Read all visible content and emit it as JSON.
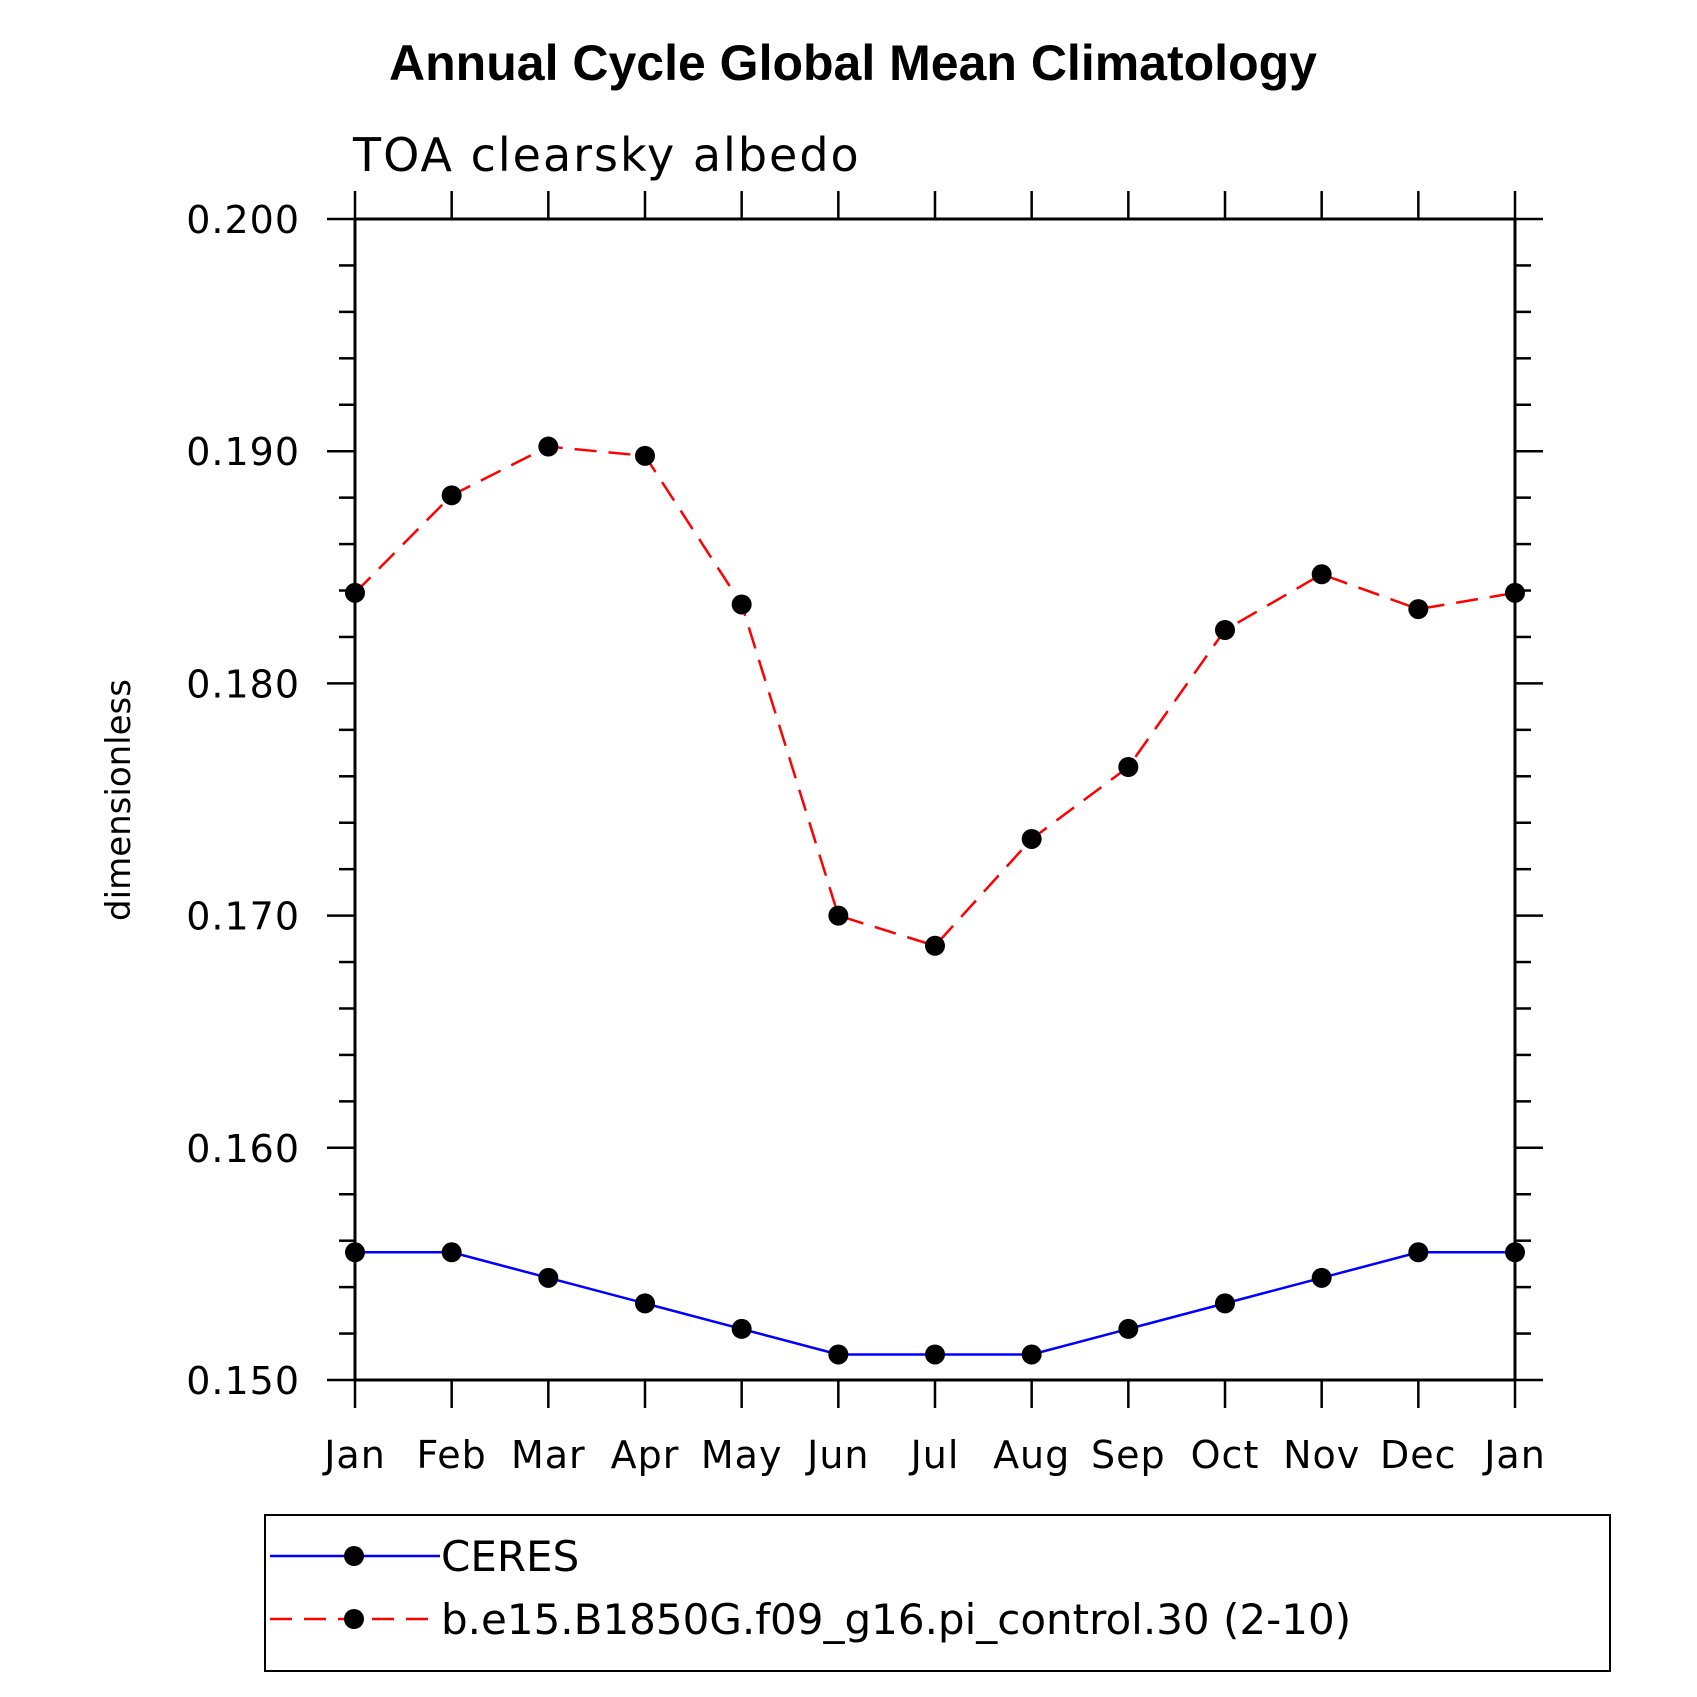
{
  "chart_data": {
    "type": "line",
    "title": "Annual Cycle Global Mean Climatology",
    "subtitle": "TOA clearsky albedo",
    "xlabel": "",
    "ylabel": "dimensionless",
    "categories": [
      "Jan",
      "Feb",
      "Mar",
      "Apr",
      "May",
      "Jun",
      "Jul",
      "Aug",
      "Sep",
      "Oct",
      "Nov",
      "Dec",
      "Jan"
    ],
    "ylim": [
      0.15,
      0.2
    ],
    "yticks": [
      "0.150",
      "0.160",
      "0.170",
      "0.180",
      "0.190",
      "0.200"
    ],
    "series": [
      {
        "name": "CERES",
        "color": "#0000ff",
        "dash": "solid",
        "values": [
          0.1555,
          0.1555,
          0.1544,
          0.1533,
          0.1522,
          0.1511,
          0.1511,
          0.1511,
          0.1522,
          0.1533,
          0.1544,
          0.1555,
          0.1555
        ]
      },
      {
        "name": "b.e15.B1850G.f09_g16.pi_control.30 (2-10)",
        "color": "#ff0000",
        "dash": "dashed",
        "values": [
          0.1839,
          0.1881,
          0.1902,
          0.1898,
          0.1834,
          0.17,
          0.1687,
          0.1733,
          0.1764,
          0.1823,
          0.1847,
          0.1832,
          0.1839
        ]
      }
    ],
    "legend": {
      "location": "bottom",
      "entries": [
        "CERES",
        "b.e15.B1850G.f09_g16.pi_control.30 (2-10)"
      ]
    },
    "grid": false
  }
}
